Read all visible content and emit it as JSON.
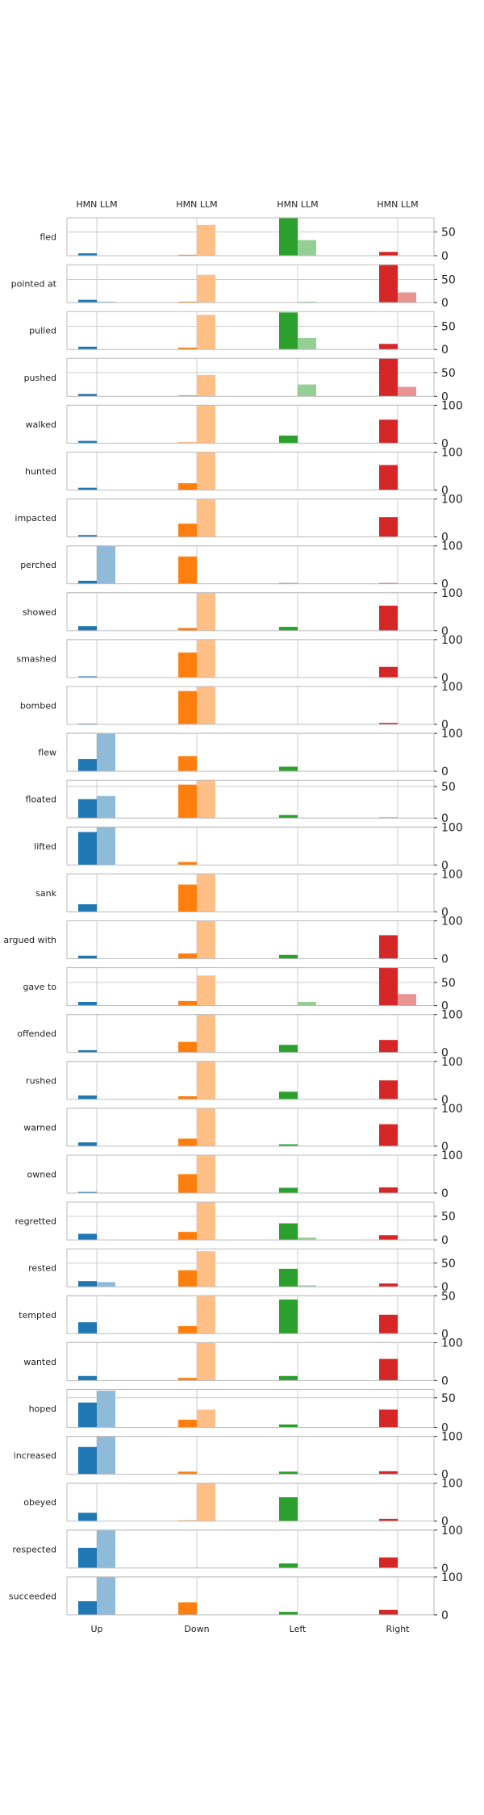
{
  "chart_data": {
    "type": "bar",
    "layout": "small-multiples",
    "categories": [
      "Up",
      "Down",
      "Left",
      "Right"
    ],
    "bar_labels": [
      "HMN",
      "LLM"
    ],
    "colors": {
      "Up": [
        "#1f77b4",
        "#8fbbd9"
      ],
      "Down": [
        "#ff7f0e",
        "#ffbf86"
      ],
      "Left": [
        "#2ca02c",
        "#95cf95"
      ],
      "Right": [
        "#d62728",
        "#ea9393"
      ]
    },
    "grid": "vertical lines at categories",
    "panels": [
      {
        "verb": "fled",
        "ylim": [
          0,
          80
        ],
        "yticks": [
          0,
          50
        ],
        "hmn": [
          5,
          2,
          80,
          8
        ],
        "llm": [
          0,
          65,
          33,
          0
        ]
      },
      {
        "verb": "pointed at",
        "ylim": [
          0,
          82
        ],
        "yticks": [
          0,
          50
        ],
        "hmn": [
          6,
          2,
          0,
          82
        ],
        "llm": [
          2,
          60,
          2,
          22
        ]
      },
      {
        "verb": "pulled",
        "ylim": [
          0,
          82
        ],
        "yticks": [
          0,
          50
        ],
        "hmn": [
          6,
          4,
          80,
          12
        ],
        "llm": [
          0,
          75,
          25,
          0
        ]
      },
      {
        "verb": "pushed",
        "ylim": [
          0,
          80
        ],
        "yticks": [
          0,
          50
        ],
        "hmn": [
          5,
          2,
          0,
          80
        ],
        "llm": [
          0,
          45,
          25,
          20
        ]
      },
      {
        "verb": "walked",
        "ylim": [
          0,
          100
        ],
        "yticks": [
          0,
          100
        ],
        "hmn": [
          6,
          2,
          20,
          62
        ],
        "llm": [
          0,
          100,
          0,
          0
        ]
      },
      {
        "verb": "hunted",
        "ylim": [
          0,
          100
        ],
        "yticks": [
          0,
          100
        ],
        "hmn": [
          6,
          18,
          0,
          66
        ],
        "llm": [
          0,
          100,
          0,
          0
        ]
      },
      {
        "verb": "impacted",
        "ylim": [
          0,
          100
        ],
        "yticks": [
          0,
          100
        ],
        "hmn": [
          5,
          35,
          0,
          52
        ],
        "llm": [
          0,
          100,
          0,
          0
        ]
      },
      {
        "verb": "perched",
        "ylim": [
          0,
          100
        ],
        "yticks": [
          0,
          100
        ],
        "hmn": [
          8,
          72,
          2,
          2
        ],
        "llm": [
          100,
          0,
          0,
          0
        ]
      },
      {
        "verb": "showed",
        "ylim": [
          0,
          100
        ],
        "yticks": [
          0,
          100
        ],
        "hmn": [
          12,
          7,
          10,
          66
        ],
        "llm": [
          0,
          100,
          0,
          0
        ]
      },
      {
        "verb": "smashed",
        "ylim": [
          0,
          100
        ],
        "yticks": [
          0,
          100
        ],
        "hmn": [
          3,
          66,
          0,
          28
        ],
        "llm": [
          0,
          100,
          0,
          0
        ]
      },
      {
        "verb": "bombed",
        "ylim": [
          0,
          100
        ],
        "yticks": [
          0,
          100
        ],
        "hmn": [
          2,
          88,
          0,
          4
        ],
        "llm": [
          0,
          100,
          0,
          0
        ]
      },
      {
        "verb": "flew",
        "ylim": [
          0,
          100
        ],
        "yticks": [
          0,
          100
        ],
        "hmn": [
          32,
          40,
          12,
          0
        ],
        "llm": [
          100,
          0,
          0,
          0
        ]
      },
      {
        "verb": "floated",
        "ylim": [
          0,
          60
        ],
        "yticks": [
          0,
          50
        ],
        "hmn": [
          30,
          53,
          5,
          1
        ],
        "llm": [
          35,
          60,
          0,
          0
        ]
      },
      {
        "verb": "lifted",
        "ylim": [
          0,
          100
        ],
        "yticks": [
          0,
          100
        ],
        "hmn": [
          87,
          8,
          0,
          0
        ],
        "llm": [
          100,
          0,
          0,
          0
        ]
      },
      {
        "verb": "sank",
        "ylim": [
          0,
          100
        ],
        "yticks": [
          0,
          100
        ],
        "hmn": [
          20,
          72,
          0,
          0
        ],
        "llm": [
          0,
          100,
          0,
          0
        ]
      },
      {
        "verb": "argued with",
        "ylim": [
          0,
          100
        ],
        "yticks": [
          0,
          100
        ],
        "hmn": [
          8,
          14,
          10,
          62
        ],
        "llm": [
          0,
          100,
          0,
          0
        ]
      },
      {
        "verb": "gave to",
        "ylim": [
          0,
          82
        ],
        "yticks": [
          0,
          50
        ],
        "hmn": [
          8,
          10,
          0,
          82
        ],
        "llm": [
          0,
          65,
          8,
          25
        ]
      },
      {
        "verb": "offended",
        "ylim": [
          0,
          100
        ],
        "yticks": [
          0,
          100
        ],
        "hmn": [
          6,
          28,
          20,
          33
        ],
        "llm": [
          0,
          100,
          0,
          0
        ]
      },
      {
        "verb": "rushed",
        "ylim": [
          0,
          100
        ],
        "yticks": [
          0,
          100
        ],
        "hmn": [
          10,
          8,
          20,
          50
        ],
        "llm": [
          0,
          100,
          0,
          0
        ]
      },
      {
        "verb": "warned",
        "ylim": [
          0,
          100
        ],
        "yticks": [
          0,
          100
        ],
        "hmn": [
          10,
          20,
          5,
          58
        ],
        "llm": [
          0,
          100,
          0,
          0
        ]
      },
      {
        "verb": "owned",
        "ylim": [
          0,
          100
        ],
        "yticks": [
          0,
          100
        ],
        "hmn": [
          3,
          50,
          14,
          15
        ],
        "llm": [
          0,
          100,
          0,
          0
        ]
      },
      {
        "verb": "regretted",
        "ylim": [
          0,
          80
        ],
        "yticks": [
          0,
          50
        ],
        "hmn": [
          13,
          17,
          35,
          10
        ],
        "llm": [
          0,
          80,
          5,
          0
        ]
      },
      {
        "verb": "rested",
        "ylim": [
          0,
          80
        ],
        "yticks": [
          0,
          50
        ],
        "hmn": [
          12,
          35,
          38,
          7
        ],
        "llm": [
          10,
          75,
          3,
          0
        ]
      },
      {
        "verb": "tempted",
        "ylim": [
          0,
          50
        ],
        "yticks": [
          0,
          50
        ],
        "hmn": [
          15,
          10,
          45,
          25
        ],
        "llm": [
          0,
          50,
          0,
          0
        ]
      },
      {
        "verb": "wanted",
        "ylim": [
          0,
          100
        ],
        "yticks": [
          0,
          100
        ],
        "hmn": [
          12,
          7,
          12,
          57
        ],
        "llm": [
          0,
          100,
          0,
          0
        ]
      },
      {
        "verb": "hoped",
        "ylim": [
          0,
          64
        ],
        "yticks": [
          0,
          50
        ],
        "hmn": [
          42,
          13,
          5,
          30
        ],
        "llm": [
          62,
          30,
          0,
          0
        ]
      },
      {
        "verb": "increased",
        "ylim": [
          0,
          100
        ],
        "yticks": [
          0,
          100
        ],
        "hmn": [
          72,
          7,
          7,
          8
        ],
        "llm": [
          100,
          0,
          0,
          0
        ]
      },
      {
        "verb": "obeyed",
        "ylim": [
          0,
          100
        ],
        "yticks": [
          0,
          100
        ],
        "hmn": [
          22,
          2,
          63,
          6
        ],
        "llm": [
          0,
          100,
          0,
          0
        ]
      },
      {
        "verb": "respected",
        "ylim": [
          0,
          100
        ],
        "yticks": [
          0,
          100
        ],
        "hmn": [
          53,
          0,
          12,
          28
        ],
        "llm": [
          100,
          0,
          0,
          0
        ]
      },
      {
        "verb": "succeeded",
        "ylim": [
          0,
          100
        ],
        "yticks": [
          0,
          100
        ],
        "hmn": [
          36,
          33,
          8,
          13
        ],
        "llm": [
          100,
          0,
          0,
          0
        ]
      }
    ]
  }
}
